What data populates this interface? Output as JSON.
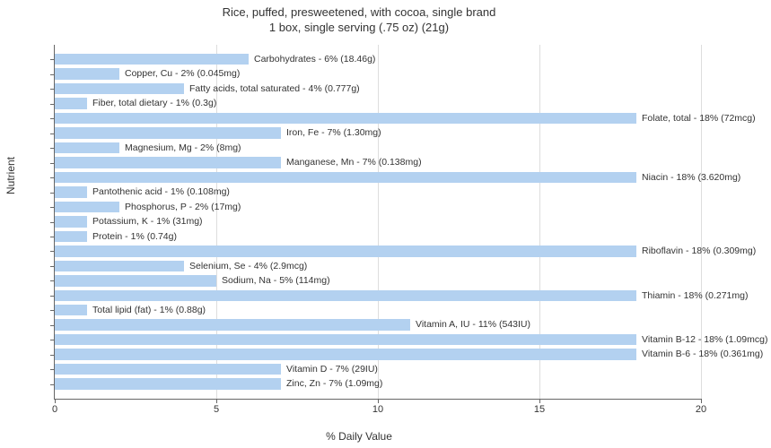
{
  "chart": {
    "type": "bar",
    "title_line1": "Rice, puffed, presweetened, with cocoa, single brand",
    "title_line2": "1 box, single serving (.75 oz) (21g)",
    "title_fontsize": 13,
    "x_axis_label": "% Daily Value",
    "y_axis_label": "Nutrient",
    "label_fontsize": 12,
    "xlim": [
      0,
      20
    ],
    "xtick_step": 5,
    "xticks": [
      0,
      5,
      10,
      15,
      20
    ],
    "bar_color": "#b3d1f0",
    "grid_color": "#dddddd",
    "axis_color": "#666666",
    "background_color": "#ffffff",
    "text_color": "#333333",
    "bar_label_fontsize": 10.5,
    "items": [
      {
        "label": "Carbohydrates - 6% (18.46g)",
        "value": 6
      },
      {
        "label": "Copper, Cu - 2% (0.045mg)",
        "value": 2
      },
      {
        "label": "Fatty acids, total saturated - 4% (0.777g)",
        "value": 4
      },
      {
        "label": "Fiber, total dietary - 1% (0.3g)",
        "value": 1
      },
      {
        "label": "Folate, total - 18% (72mcg)",
        "value": 18
      },
      {
        "label": "Iron, Fe - 7% (1.30mg)",
        "value": 7
      },
      {
        "label": "Magnesium, Mg - 2% (8mg)",
        "value": 2
      },
      {
        "label": "Manganese, Mn - 7% (0.138mg)",
        "value": 7
      },
      {
        "label": "Niacin - 18% (3.620mg)",
        "value": 18
      },
      {
        "label": "Pantothenic acid - 1% (0.108mg)",
        "value": 1
      },
      {
        "label": "Phosphorus, P - 2% (17mg)",
        "value": 2
      },
      {
        "label": "Potassium, K - 1% (31mg)",
        "value": 1
      },
      {
        "label": "Protein - 1% (0.74g)",
        "value": 1
      },
      {
        "label": "Riboflavin - 18% (0.309mg)",
        "value": 18
      },
      {
        "label": "Selenium, Se - 4% (2.9mcg)",
        "value": 4
      },
      {
        "label": "Sodium, Na - 5% (114mg)",
        "value": 5
      },
      {
        "label": "Thiamin - 18% (0.271mg)",
        "value": 18
      },
      {
        "label": "Total lipid (fat) - 1% (0.88g)",
        "value": 1
      },
      {
        "label": "Vitamin A, IU - 11% (543IU)",
        "value": 11
      },
      {
        "label": "Vitamin B-12 - 18% (1.09mcg)",
        "value": 18
      },
      {
        "label": "Vitamin B-6 - 18% (0.361mg)",
        "value": 18
      },
      {
        "label": "Vitamin D - 7% (29IU)",
        "value": 7
      },
      {
        "label": "Zinc, Zn - 7% (1.09mg)",
        "value": 7
      }
    ]
  }
}
